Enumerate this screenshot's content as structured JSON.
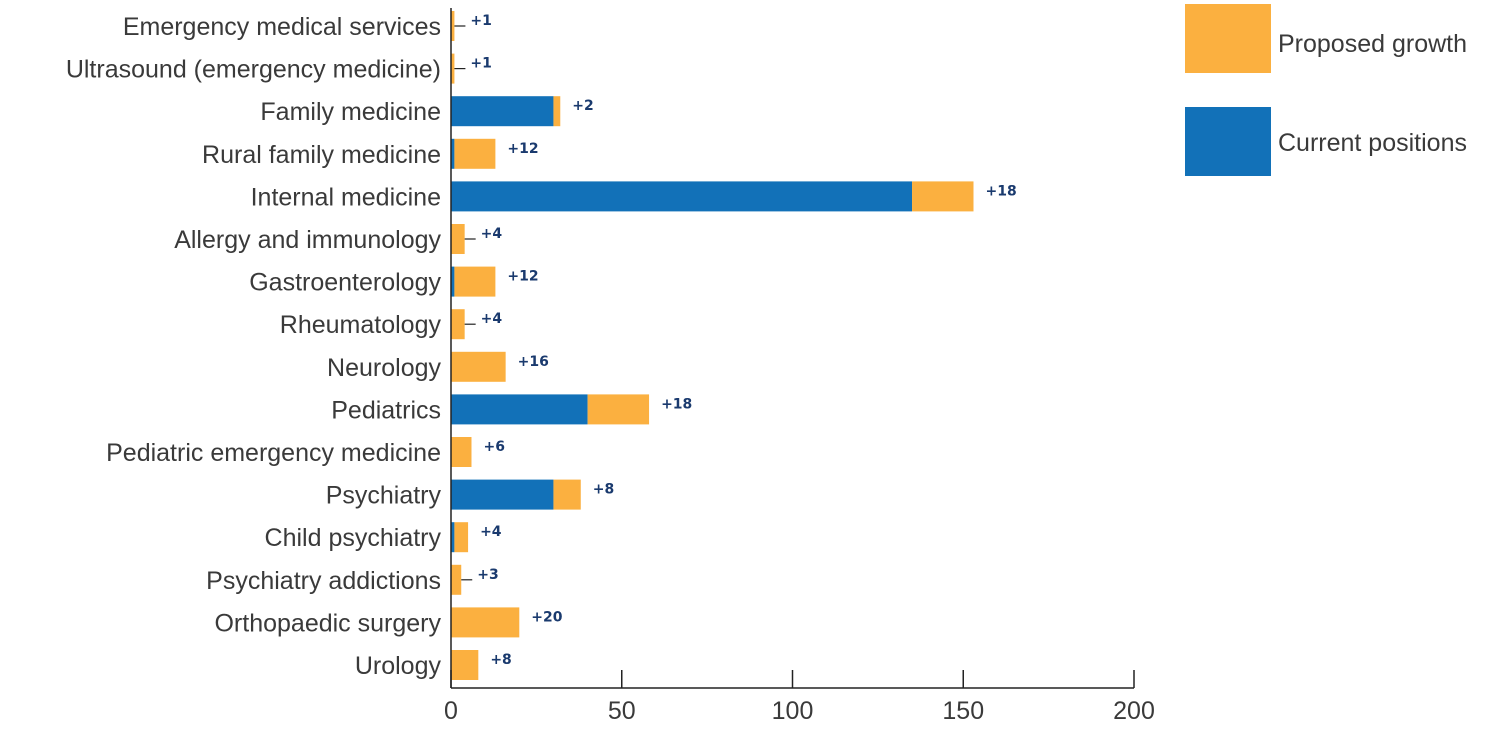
{
  "chart_data": {
    "type": "bar",
    "orientation": "horizontal",
    "stacked": true,
    "categories": [
      "Emergency medical services",
      "Ultrasound (emergency medicine)",
      "Family medicine",
      "Rural family medicine",
      "Internal medicine",
      "Allergy and immunology",
      "Gastroenterology",
      "Rheumatology",
      "Neurology",
      "Pediatrics",
      "Pediatric emergency medicine",
      "Psychiatry",
      "Child psychiatry",
      "Psychiatry addictions",
      "Orthopaedic surgery",
      "Urology"
    ],
    "series": [
      {
        "name": "Current positions",
        "color": "#1271b8",
        "values": [
          0,
          0,
          30,
          1,
          135,
          0,
          1,
          0,
          0,
          40,
          0,
          30,
          1,
          0,
          0,
          0
        ]
      },
      {
        "name": "Proposed growth",
        "color": "#fbb040",
        "values": [
          1,
          1,
          2,
          12,
          18,
          4,
          12,
          4,
          16,
          18,
          6,
          8,
          4,
          3,
          20,
          8
        ]
      }
    ],
    "data_labels": [
      "+1",
      "+1",
      "+2",
      "+12",
      "+18",
      "+4",
      "+12",
      "+4",
      "+16",
      "+18",
      "+6",
      "+8",
      "+4",
      "+3",
      "+20",
      "+8"
    ],
    "xlim": [
      0,
      200
    ],
    "xticks": [
      "0",
      "50",
      "100",
      "150",
      "200"
    ],
    "legend": {
      "position": "top-right",
      "entries": [
        "Proposed growth",
        "Current positions"
      ]
    },
    "grid": false
  }
}
